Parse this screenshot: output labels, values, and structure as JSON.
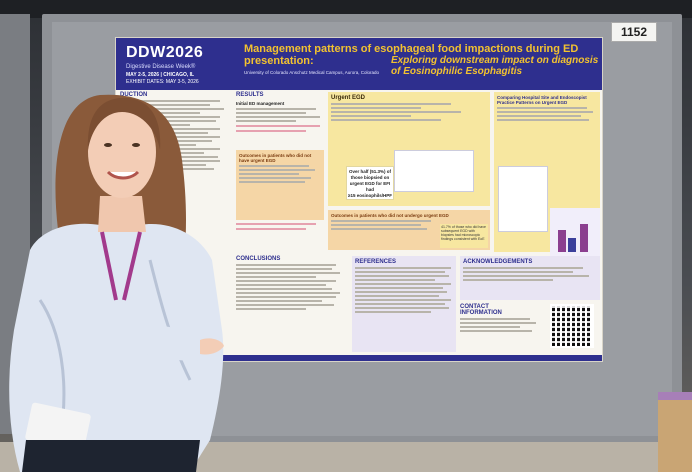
{
  "booth": {
    "number": "1152"
  },
  "poster": {
    "brand": {
      "logo": "DDW2026",
      "tagline": "Digestive Disease Week®",
      "dates": "MAY 2-5, 2026 | CHICAGO, IL",
      "exhibit": "EXHIBIT DATES: MAY 3-5, 2026"
    },
    "title_main": "Management patterns of esophageal food impactions during ED presentation:",
    "title_sub": "Exploring downstream impact on diagnosis of Eosinophilic Esophagitis",
    "authors": "University of Colorado Anschutz Medical Campus, Aurora, Colorado",
    "sections": {
      "intro": "DUCTION",
      "results": "RESULTS",
      "urgent_egd": "Urgent EGD",
      "conclusions": "CONCLUSIONS",
      "references": "REFERENCES",
      "acknowledgements": "ACKNOWLEDGEMENTS",
      "contact": "CONTACT INFORMATION",
      "comparing": "Comparing Hospital Site and Endoscopist Practice Patterns on Urgent EGD"
    },
    "results_items": {
      "initial": "Initial ED management",
      "outcomes_not_biopsied": "Outcomes in patients who did not have urgent EGD"
    },
    "callout": {
      "line1": "Over half (51.3%) of",
      "line2": "those biopsied on",
      "line3": "urgent EGD for EFI had",
      "line4": "≥15 eosinophils/HPF"
    },
    "outcomes_no_urgent": "Outcomes in patients who did not undergo urgent EGD",
    "no_biopsy_note": "41.7% of those who did have subsequent EGD with biopsies had microscopic findings consistent with EoE"
  },
  "colors": {
    "header_navy": "#2e2f8e",
    "title_gold": "#f2c230",
    "highlight_yellow": "#f7e7a0",
    "highlight_orange": "#f5d6a6",
    "lanyard_purple": "#a23a8c"
  }
}
